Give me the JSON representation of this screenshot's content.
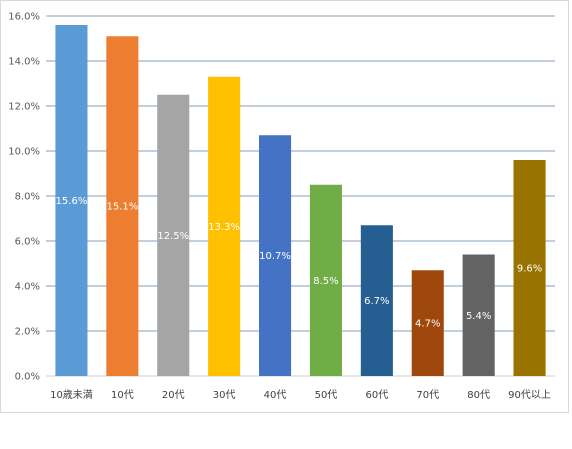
{
  "chart_data": {
    "type": "bar",
    "categories": [
      "10歳未満",
      "10代",
      "20代",
      "30代",
      "40代",
      "50代",
      "60代",
      "70代",
      "80代",
      "90代以上"
    ],
    "values": [
      15.6,
      15.1,
      12.5,
      13.3,
      10.7,
      8.5,
      6.7,
      4.7,
      5.4,
      9.6
    ],
    "data_labels": [
      "15.6%",
      "15.1%",
      "12.5%",
      "13.3%",
      "10.7%",
      "8.5%",
      "6.7%",
      "4.7%",
      "5.4%",
      "9.6%"
    ],
    "colors": [
      "#5b9bd5",
      "#ed7d31",
      "#a5a5a5",
      "#ffc000",
      "#4472c4",
      "#70ad47",
      "#255e91",
      "#9e480e",
      "#636363",
      "#997300"
    ],
    "ytick_labels": [
      "0.0%",
      "2.0%",
      "4.0%",
      "6.0%",
      "8.0%",
      "10.0%",
      "12.0%",
      "14.0%",
      "16.0%"
    ],
    "ylim": [
      0,
      16
    ],
    "ytick_step": 2,
    "grid": true,
    "gridline_color": "#5b7fa6",
    "title": "",
    "xlabel": "",
    "ylabel": ""
  }
}
